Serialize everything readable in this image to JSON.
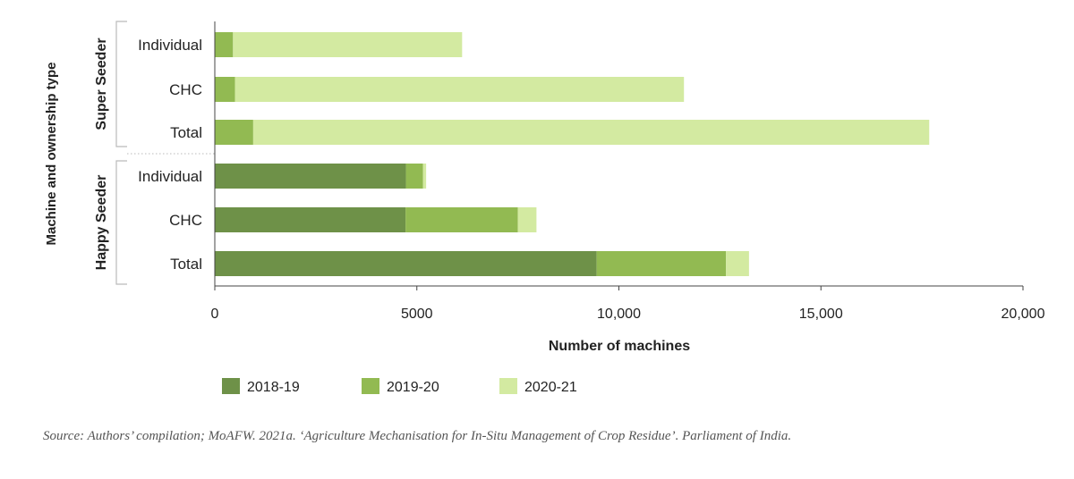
{
  "chart_data": {
    "type": "bar",
    "orientation": "horizontal",
    "stacked": true,
    "ylabel": "Machine and ownership type",
    "xlabel": "Number of machines",
    "xlim": [
      0,
      20000
    ],
    "x_ticks": [
      0,
      5000,
      10000,
      15000,
      20000
    ],
    "x_tick_labels": [
      "0",
      "5000",
      "10,000",
      "15,000",
      "20,000"
    ],
    "grid": false,
    "legend_position": "bottom",
    "groups": [
      {
        "name": "Super Seeder",
        "categories": [
          "Individual",
          "CHC",
          "Total"
        ]
      },
      {
        "name": "Happy Seeder",
        "categories": [
          "Individual",
          "CHC",
          "Total"
        ]
      }
    ],
    "series": [
      {
        "name": "2018-19",
        "color": "#6e9148",
        "values": [
          0,
          0,
          0,
          4730,
          4720,
          9450
        ]
      },
      {
        "name": "2019-20",
        "color": "#92ba52",
        "values": [
          450,
          500,
          950,
          420,
          2780,
          3200
        ]
      },
      {
        "name": "2020-21",
        "color": "#d3eaa1",
        "values": [
          5670,
          11110,
          16730,
          80,
          460,
          570
        ]
      }
    ]
  },
  "source_note": "Source: Authors’ compilation; MoAFW. 2021a. ‘Agriculture Mechanisation for In-Situ Management of Crop Residue’. Parliament of India."
}
